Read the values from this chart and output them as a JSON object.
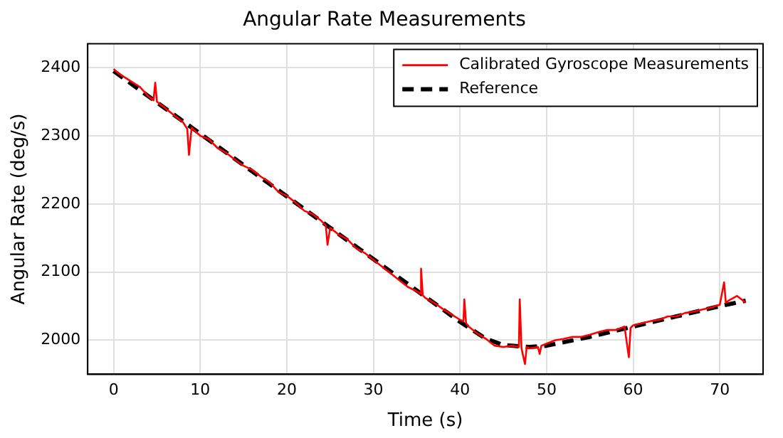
{
  "chart_data": {
    "type": "line",
    "title": "Angular Rate Measurements",
    "xlabel": "Time (s)",
    "ylabel": "Angular Rate (deg/s)",
    "xlim": [
      -3,
      75
    ],
    "ylim": [
      1950,
      2435
    ],
    "xticks": [
      0,
      10,
      20,
      30,
      40,
      50,
      60,
      70
    ],
    "yticks": [
      2000,
      2100,
      2200,
      2300,
      2400
    ],
    "grid": true,
    "legend": "top right",
    "marker": "none",
    "series": [
      {
        "name": "Calibrated Gyroscope Measurements",
        "color": "#ff0000",
        "line_style": "solid",
        "x": [
          0,
          0.5,
          1,
          2,
          3,
          4,
          4.6,
          4.8,
          5,
          6,
          7,
          8,
          8.5,
          8.7,
          9,
          10,
          11,
          12,
          13,
          14,
          15,
          16,
          17,
          18,
          19,
          20,
          21,
          22,
          23,
          24,
          24.5,
          24.7,
          25,
          26,
          27,
          28,
          29,
          30,
          31,
          32,
          33,
          34,
          35,
          35.4,
          35.5,
          35.7,
          36,
          37,
          38,
          39,
          40,
          40.4,
          40.5,
          40.7,
          41,
          42,
          43,
          44,
          45,
          46,
          46.8,
          46.9,
          47.1,
          47.5,
          47.7,
          48,
          49,
          49.2,
          49.4,
          50,
          51,
          52,
          53,
          54,
          55,
          56,
          57,
          58,
          59,
          59.5,
          59.7,
          60,
          61,
          62,
          63,
          64,
          65,
          66,
          67,
          68,
          69,
          70,
          70.5,
          70.7,
          71,
          72,
          72.5,
          73
        ],
        "values": [
          2398,
          2392,
          2388,
          2380,
          2372,
          2358,
          2352,
          2378,
          2350,
          2340,
          2330,
          2320,
          2310,
          2272,
          2312,
          2300,
          2295,
          2282,
          2275,
          2265,
          2256,
          2250,
          2240,
          2232,
          2218,
          2212,
          2202,
          2190,
          2185,
          2175,
          2168,
          2140,
          2165,
          2155,
          2148,
          2135,
          2128,
          2118,
          2108,
          2098,
          2088,
          2078,
          2072,
          2068,
          2105,
          2066,
          2062,
          2055,
          2046,
          2038,
          2030,
          2028,
          2060,
          2025,
          2020,
          2010,
          2002,
          1992,
          1990,
          1992,
          1990,
          2060,
          1988,
          1965,
          1990,
          1988,
          1990,
          1980,
          1992,
          1995,
          2000,
          2002,
          2005,
          2005,
          2008,
          2012,
          2015,
          2015,
          2020,
          1975,
          2018,
          2022,
          2025,
          2028,
          2030,
          2035,
          2035,
          2040,
          2042,
          2045,
          2048,
          2052,
          2085,
          2055,
          2058,
          2065,
          2060,
          2055
        ]
      },
      {
        "name": "Reference",
        "color": "#000000",
        "line_style": "dashed",
        "x": [
          0,
          10,
          20,
          30,
          40,
          43,
          45,
          48,
          50,
          55,
          60,
          65,
          70,
          73
        ],
        "values": [
          2395,
          2303,
          2211,
          2119,
          2027,
          2002,
          1993,
          1990,
          1992,
          2005,
          2020,
          2035,
          2050,
          2058
        ]
      }
    ]
  }
}
